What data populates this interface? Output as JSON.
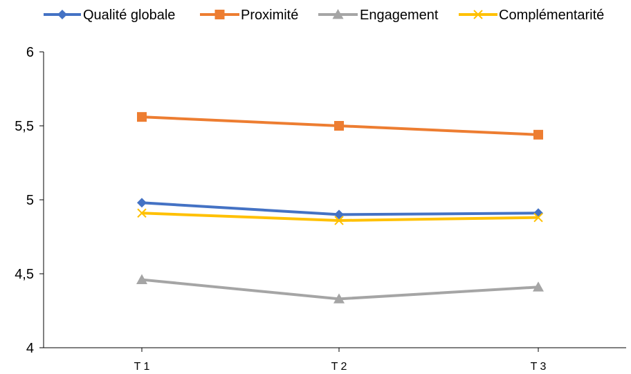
{
  "chart_data": {
    "type": "line",
    "title": "",
    "xlabel": "",
    "ylabel": "",
    "categories": [
      "T 1",
      "T 2",
      "T 3"
    ],
    "ylim": [
      4,
      6
    ],
    "yticks": [
      4,
      4.5,
      5,
      5.5,
      6
    ],
    "ytick_labels": [
      "4",
      "4,5",
      "5",
      "5,5",
      "6"
    ],
    "grid": false,
    "legend_position": "top",
    "series": [
      {
        "name": "Qualité globale",
        "values": [
          4.98,
          4.9,
          4.91
        ],
        "color": "#4472C4",
        "marker": "diamond"
      },
      {
        "name": "Proximité",
        "values": [
          5.56,
          5.5,
          5.44
        ],
        "color": "#ED7D31",
        "marker": "square"
      },
      {
        "name": "Engagement",
        "values": [
          4.46,
          4.33,
          4.41
        ],
        "color": "#A5A5A5",
        "marker": "triangle"
      },
      {
        "name": "Complémentarité",
        "values": [
          4.91,
          4.86,
          4.88
        ],
        "color": "#FFC000",
        "marker": "x"
      }
    ]
  }
}
